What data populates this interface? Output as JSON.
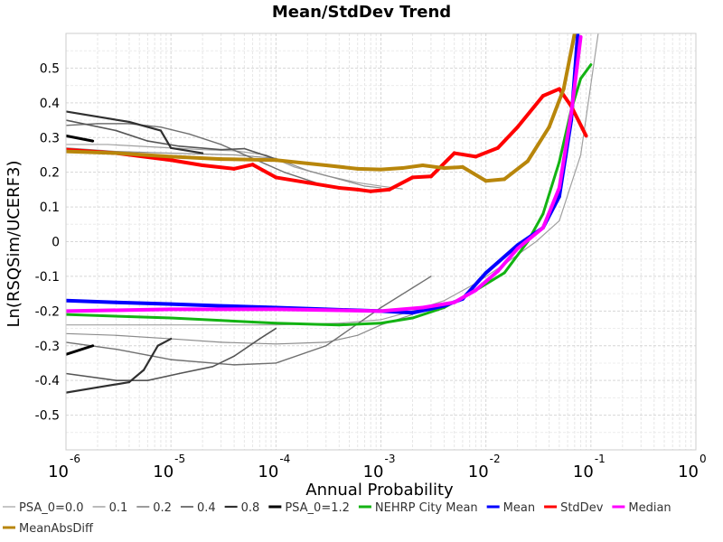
{
  "chart_data": {
    "type": "line",
    "title": "Mean/StdDev Trend",
    "xlabel": "Annual Probability",
    "ylabel": "Ln(RSQSim/UCERF3)",
    "x_scale": "log",
    "x_range": [
      1e-06,
      1
    ],
    "ylim": [
      -0.6,
      0.6
    ],
    "x_ticks": [
      {
        "base": "10",
        "exp": "-6"
      },
      {
        "base": "10",
        "exp": "-5"
      },
      {
        "base": "10",
        "exp": "-4"
      },
      {
        "base": "10",
        "exp": "-3"
      },
      {
        "base": "10",
        "exp": "-2"
      },
      {
        "base": "10",
        "exp": "-1"
      },
      {
        "base": "10",
        "exp": "0"
      }
    ],
    "y_ticks": [
      "0.5",
      "0.4",
      "0.3",
      "0.2",
      "0.1",
      "0",
      "-0.1",
      "-0.2",
      "-0.3",
      "-0.4",
      "-0.5"
    ],
    "grid": true,
    "legend_position": "bottom",
    "series": [
      {
        "name": "PSA_0=0.0",
        "color": "#a0a0a0",
        "width": 1.2,
        "legend_index": 0,
        "points": [
          [
            1e-06,
            0.28
          ],
          [
            2.5e-06,
            0.28
          ],
          [
            5e-06,
            0.275
          ],
          [
            1e-05,
            0.27
          ],
          [
            2e-05,
            0.265
          ],
          [
            4e-05,
            0.262
          ],
          [
            8e-05,
            0.25
          ],
          [
            0.00015,
            0.215
          ],
          [
            0.0003,
            0.19
          ],
          [
            0.0006,
            0.17
          ],
          [
            0.001,
            0.16
          ],
          [
            0.0016,
            0.152
          ],
          [
            1e-06,
            -0.24
          ],
          [
            5e-06,
            -0.24
          ],
          [
            2e-05,
            -0.24
          ],
          [
            0.0001,
            -0.24
          ],
          [
            0.0004,
            -0.235
          ],
          [
            0.001,
            -0.225
          ],
          [
            0.002,
            -0.2
          ],
          [
            0.004,
            -0.17
          ],
          [
            0.008,
            -0.12
          ],
          [
            0.015,
            -0.065
          ],
          [
            0.03,
            0.0
          ],
          [
            0.05,
            0.06
          ],
          [
            0.08,
            0.25
          ],
          [
            0.12,
            0.62
          ]
        ]
      },
      {
        "name": "0.1",
        "color": "#8c8c8c",
        "width": 1.2,
        "legend_index": 1,
        "points": [
          [
            1e-06,
            0.27
          ],
          [
            3e-06,
            0.26
          ],
          [
            1e-05,
            0.255
          ],
          [
            4e-05,
            0.25
          ],
          [
            0.0001,
            0.24
          ],
          [
            0.0002,
            0.205
          ],
          [
            0.0004,
            0.18
          ],
          [
            0.0007,
            0.16
          ],
          [
            0.001,
            0.155
          ],
          [
            1e-06,
            -0.265
          ],
          [
            3e-06,
            -0.27
          ],
          [
            1e-05,
            -0.28
          ],
          [
            3e-05,
            -0.29
          ],
          [
            0.0001,
            -0.295
          ],
          [
            0.0003,
            -0.29
          ],
          [
            0.0006,
            -0.27
          ],
          [
            0.001,
            -0.24
          ],
          [
            0.002,
            -0.21
          ]
        ]
      },
      {
        "name": "0.2",
        "color": "#707070",
        "width": 1.4,
        "legend_index": 2,
        "points": [
          [
            1e-06,
            0.335
          ],
          [
            2e-06,
            0.34
          ],
          [
            4e-06,
            0.34
          ],
          [
            8e-06,
            0.33
          ],
          [
            1.5e-05,
            0.31
          ],
          [
            3e-05,
            0.28
          ],
          [
            6e-05,
            0.24
          ],
          [
            0.00012,
            0.2
          ],
          [
            0.0003,
            0.16
          ],
          [
            0.0005,
            0.15
          ],
          [
            1e-06,
            -0.29
          ],
          [
            3e-06,
            -0.31
          ],
          [
            1e-05,
            -0.34
          ],
          [
            4e-05,
            -0.355
          ],
          [
            0.0001,
            -0.35
          ],
          [
            0.0003,
            -0.3
          ],
          [
            0.001,
            -0.19
          ],
          [
            0.003,
            -0.1
          ]
        ]
      },
      {
        "name": "0.4",
        "color": "#555555",
        "width": 1.6,
        "legend_index": 3,
        "points": [
          [
            1e-06,
            0.35
          ],
          [
            3e-06,
            0.32
          ],
          [
            6e-06,
            0.29
          ],
          [
            1.2e-05,
            0.275
          ],
          [
            3e-05,
            0.265
          ],
          [
            5e-05,
            0.268
          ],
          [
            0.00012,
            0.23
          ],
          [
            1e-06,
            -0.38
          ],
          [
            3e-06,
            -0.4
          ],
          [
            6e-06,
            -0.4
          ],
          [
            1.2e-05,
            -0.38
          ],
          [
            2.5e-05,
            -0.36
          ],
          [
            4e-05,
            -0.33
          ],
          [
            7e-05,
            -0.28
          ],
          [
            0.0001,
            -0.25
          ]
        ]
      },
      {
        "name": "0.8",
        "color": "#303030",
        "width": 2.2,
        "legend_index": 4,
        "points": [
          [
            1e-06,
            0.375
          ],
          [
            2e-06,
            0.36
          ],
          [
            4e-06,
            0.345
          ],
          [
            8e-06,
            0.32
          ],
          [
            1e-05,
            0.27
          ],
          [
            2e-05,
            0.255
          ],
          [
            1e-06,
            -0.435
          ],
          [
            2e-06,
            -0.42
          ],
          [
            4e-06,
            -0.405
          ],
          [
            5.5e-06,
            -0.37
          ],
          [
            7.5e-06,
            -0.3
          ],
          [
            1e-05,
            -0.28
          ]
        ]
      },
      {
        "name": "PSA_0=1.2",
        "color": "#000000",
        "width": 3,
        "legend_index": 5,
        "points": [
          [
            1e-06,
            0.305
          ],
          [
            1.8e-06,
            0.29
          ],
          [
            1e-06,
            -0.325
          ],
          [
            1.8e-06,
            -0.3
          ]
        ]
      },
      {
        "name": "NEHRP City Mean",
        "color": "#13b313",
        "width": 3,
        "legend_index": 6,
        "points": [
          [
            1e-06,
            -0.21
          ],
          [
            1e-05,
            -0.22
          ],
          [
            0.0001,
            -0.235
          ],
          [
            0.0004,
            -0.24
          ],
          [
            0.001,
            -0.235
          ],
          [
            0.002,
            -0.22
          ],
          [
            0.004,
            -0.19
          ],
          [
            0.008,
            -0.14
          ],
          [
            0.015,
            -0.09
          ],
          [
            0.025,
            0.0
          ],
          [
            0.035,
            0.08
          ],
          [
            0.05,
            0.23
          ],
          [
            0.065,
            0.38
          ],
          [
            0.08,
            0.47
          ],
          [
            0.1,
            0.51
          ]
        ]
      },
      {
        "name": "Mean",
        "color": "#0000ff",
        "width": 4,
        "legend_index": 7,
        "points": [
          [
            1e-06,
            -0.17
          ],
          [
            3e-06,
            -0.175
          ],
          [
            1e-05,
            -0.18
          ],
          [
            3e-05,
            -0.185
          ],
          [
            0.0001,
            -0.19
          ],
          [
            0.0003,
            -0.195
          ],
          [
            0.001,
            -0.2
          ],
          [
            0.002,
            -0.205
          ],
          [
            0.004,
            -0.185
          ],
          [
            0.006,
            -0.165
          ],
          [
            0.01,
            -0.09
          ],
          [
            0.02,
            -0.01
          ],
          [
            0.035,
            0.04
          ],
          [
            0.05,
            0.13
          ],
          [
            0.065,
            0.35
          ],
          [
            0.075,
            0.6
          ]
        ]
      },
      {
        "name": "StdDev",
        "color": "#ff0000",
        "width": 4,
        "legend_index": 8,
        "points": [
          [
            1e-06,
            0.265
          ],
          [
            3e-06,
            0.255
          ],
          [
            1e-05,
            0.235
          ],
          [
            2e-05,
            0.22
          ],
          [
            4e-05,
            0.21
          ],
          [
            6e-05,
            0.222
          ],
          [
            0.0001,
            0.185
          ],
          [
            0.0002,
            0.17
          ],
          [
            0.0004,
            0.155
          ],
          [
            0.0006,
            0.15
          ],
          [
            0.0008,
            0.145
          ],
          [
            0.0012,
            0.15
          ],
          [
            0.002,
            0.185
          ],
          [
            0.003,
            0.188
          ],
          [
            0.005,
            0.255
          ],
          [
            0.008,
            0.245
          ],
          [
            0.013,
            0.27
          ],
          [
            0.02,
            0.33
          ],
          [
            0.035,
            0.42
          ],
          [
            0.05,
            0.44
          ],
          [
            0.065,
            0.39
          ],
          [
            0.09,
            0.305
          ]
        ]
      },
      {
        "name": "Median",
        "color": "#ff00ff",
        "width": 4,
        "legend_index": 9,
        "points": [
          [
            1e-06,
            -0.2
          ],
          [
            1e-05,
            -0.195
          ],
          [
            0.0001,
            -0.195
          ],
          [
            0.001,
            -0.2
          ],
          [
            0.0025,
            -0.19
          ],
          [
            0.005,
            -0.175
          ],
          [
            0.008,
            -0.14
          ],
          [
            0.013,
            -0.085
          ],
          [
            0.02,
            -0.02
          ],
          [
            0.035,
            0.04
          ],
          [
            0.05,
            0.155
          ],
          [
            0.065,
            0.37
          ],
          [
            0.08,
            0.59
          ]
        ]
      },
      {
        "name": "MeanAbsDiff",
        "color": "#b8860b",
        "width": 4,
        "legend_index": 10,
        "points": [
          [
            1e-06,
            0.26
          ],
          [
            3e-06,
            0.255
          ],
          [
            1e-05,
            0.245
          ],
          [
            3e-05,
            0.238
          ],
          [
            0.0001,
            0.235
          ],
          [
            0.0003,
            0.22
          ],
          [
            0.0006,
            0.21
          ],
          [
            0.001,
            0.208
          ],
          [
            0.0016,
            0.212
          ],
          [
            0.0025,
            0.22
          ],
          [
            0.004,
            0.212
          ],
          [
            0.006,
            0.215
          ],
          [
            0.01,
            0.175
          ],
          [
            0.015,
            0.18
          ],
          [
            0.025,
            0.232
          ],
          [
            0.04,
            0.33
          ],
          [
            0.055,
            0.44
          ],
          [
            0.07,
            0.6
          ]
        ]
      }
    ]
  }
}
